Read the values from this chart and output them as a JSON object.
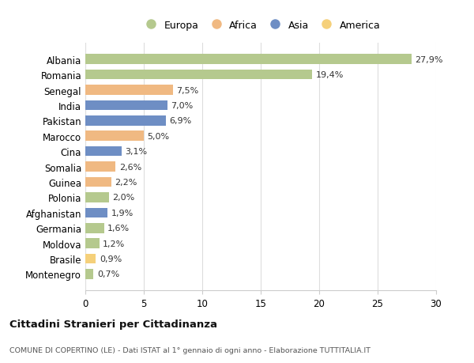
{
  "countries": [
    "Albania",
    "Romania",
    "Senegal",
    "India",
    "Pakistan",
    "Marocco",
    "Cina",
    "Somalia",
    "Guinea",
    "Polonia",
    "Afghanistan",
    "Germania",
    "Moldova",
    "Brasile",
    "Montenegro"
  ],
  "values": [
    27.9,
    19.4,
    7.5,
    7.0,
    6.9,
    5.0,
    3.1,
    2.6,
    2.2,
    2.0,
    1.9,
    1.6,
    1.2,
    0.9,
    0.7
  ],
  "labels": [
    "27,9%",
    "19,4%",
    "7,5%",
    "7,0%",
    "6,9%",
    "5,0%",
    "3,1%",
    "2,6%",
    "2,2%",
    "2,0%",
    "1,9%",
    "1,6%",
    "1,2%",
    "0,9%",
    "0,7%"
  ],
  "colors": [
    "#b5c98e",
    "#b5c98e",
    "#f0b982",
    "#6e8ec4",
    "#6e8ec4",
    "#f0b982",
    "#6e8ec4",
    "#f0b982",
    "#f0b982",
    "#b5c98e",
    "#6e8ec4",
    "#b5c98e",
    "#b5c98e",
    "#f5d07a",
    "#b5c98e"
  ],
  "legend_labels": [
    "Europa",
    "Africa",
    "Asia",
    "America"
  ],
  "legend_colors": [
    "#b5c98e",
    "#f0b982",
    "#6e8ec4",
    "#f5d07a"
  ],
  "title": "Cittadini Stranieri per Cittadinanza",
  "subtitle": "COMUNE DI COPERTINO (LE) - Dati ISTAT al 1° gennaio di ogni anno - Elaborazione TUTTITALIA.IT",
  "xlim": [
    0,
    30
  ],
  "xticks": [
    0,
    5,
    10,
    15,
    20,
    25,
    30
  ],
  "background_color": "#ffffff",
  "grid_color": "#dddddd"
}
